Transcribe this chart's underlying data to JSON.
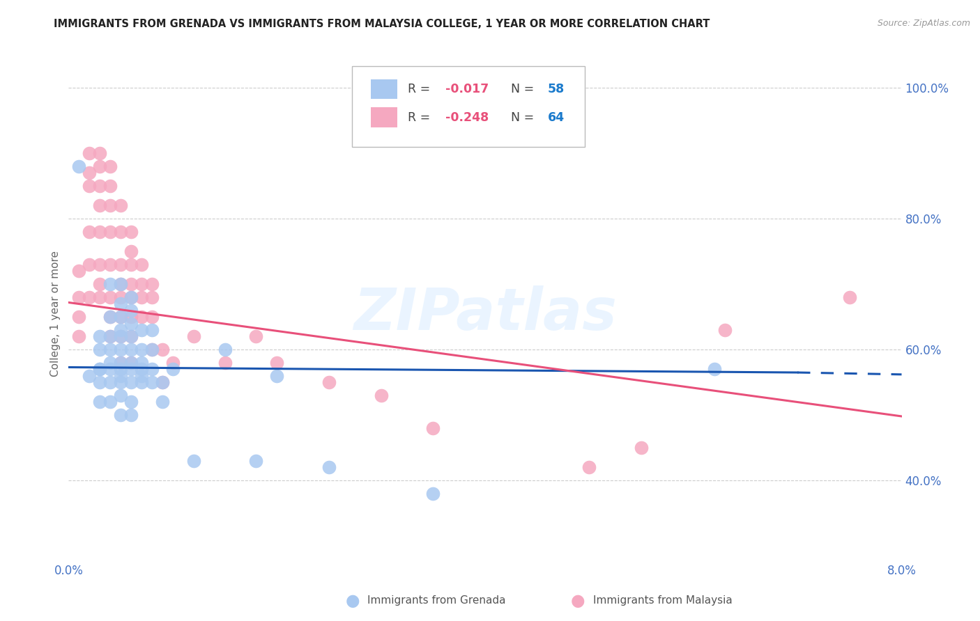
{
  "title": "IMMIGRANTS FROM GRENADA VS IMMIGRANTS FROM MALAYSIA COLLEGE, 1 YEAR OR MORE CORRELATION CHART",
  "source": "Source: ZipAtlas.com",
  "ylabel": "College, 1 year or more",
  "xlim": [
    0.0,
    0.08
  ],
  "ylim": [
    0.28,
    1.03
  ],
  "yticks_right": [
    1.0,
    0.8,
    0.6,
    0.4
  ],
  "yticklabels_right": [
    "100.0%",
    "80.0%",
    "60.0%",
    "40.0%"
  ],
  "series1_label": "Immigrants from Grenada",
  "series1_R": "-0.017",
  "series1_N": "58",
  "series1_color": "#a8c8f0",
  "series1_line_color": "#1a56b0",
  "series2_label": "Immigrants from Malaysia",
  "series2_R": "-0.248",
  "series2_N": "64",
  "series2_color": "#f5a8c0",
  "series2_line_color": "#e8507a",
  "watermark": "ZIPatlas",
  "background_color": "#ffffff",
  "grid_color": "#cccccc",
  "series1_x": [
    0.001,
    0.002,
    0.003,
    0.003,
    0.003,
    0.003,
    0.003,
    0.003,
    0.004,
    0.004,
    0.004,
    0.004,
    0.004,
    0.004,
    0.004,
    0.004,
    0.005,
    0.005,
    0.005,
    0.005,
    0.005,
    0.005,
    0.005,
    0.005,
    0.005,
    0.005,
    0.005,
    0.005,
    0.006,
    0.006,
    0.006,
    0.006,
    0.006,
    0.006,
    0.006,
    0.006,
    0.006,
    0.006,
    0.007,
    0.007,
    0.007,
    0.007,
    0.007,
    0.007,
    0.008,
    0.008,
    0.008,
    0.008,
    0.009,
    0.009,
    0.01,
    0.012,
    0.015,
    0.018,
    0.02,
    0.025,
    0.035,
    0.062
  ],
  "series1_y": [
    0.88,
    0.56,
    0.62,
    0.6,
    0.57,
    0.55,
    0.52,
    0.57,
    0.7,
    0.65,
    0.62,
    0.6,
    0.58,
    0.57,
    0.55,
    0.52,
    0.7,
    0.67,
    0.65,
    0.63,
    0.62,
    0.6,
    0.58,
    0.57,
    0.56,
    0.55,
    0.53,
    0.5,
    0.68,
    0.66,
    0.64,
    0.62,
    0.6,
    0.58,
    0.57,
    0.55,
    0.52,
    0.5,
    0.63,
    0.6,
    0.58,
    0.57,
    0.56,
    0.55,
    0.63,
    0.6,
    0.57,
    0.55,
    0.55,
    0.52,
    0.57,
    0.43,
    0.6,
    0.43,
    0.56,
    0.42,
    0.38,
    0.57
  ],
  "series2_x": [
    0.001,
    0.001,
    0.001,
    0.001,
    0.002,
    0.002,
    0.002,
    0.002,
    0.002,
    0.002,
    0.003,
    0.003,
    0.003,
    0.003,
    0.003,
    0.003,
    0.003,
    0.003,
    0.004,
    0.004,
    0.004,
    0.004,
    0.004,
    0.004,
    0.004,
    0.004,
    0.005,
    0.005,
    0.005,
    0.005,
    0.005,
    0.005,
    0.005,
    0.005,
    0.006,
    0.006,
    0.006,
    0.006,
    0.006,
    0.006,
    0.006,
    0.006,
    0.007,
    0.007,
    0.007,
    0.007,
    0.008,
    0.008,
    0.008,
    0.008,
    0.009,
    0.009,
    0.01,
    0.012,
    0.015,
    0.018,
    0.02,
    0.025,
    0.03,
    0.035,
    0.05,
    0.055,
    0.063,
    0.075
  ],
  "series2_y": [
    0.72,
    0.68,
    0.65,
    0.62,
    0.9,
    0.87,
    0.85,
    0.78,
    0.73,
    0.68,
    0.9,
    0.88,
    0.85,
    0.82,
    0.78,
    0.73,
    0.7,
    0.68,
    0.88,
    0.85,
    0.82,
    0.78,
    0.73,
    0.68,
    0.65,
    0.62,
    0.82,
    0.78,
    0.73,
    0.7,
    0.68,
    0.65,
    0.62,
    0.58,
    0.78,
    0.75,
    0.73,
    0.7,
    0.68,
    0.65,
    0.62,
    0.58,
    0.73,
    0.7,
    0.68,
    0.65,
    0.7,
    0.68,
    0.65,
    0.6,
    0.6,
    0.55,
    0.58,
    0.62,
    0.58,
    0.62,
    0.58,
    0.55,
    0.53,
    0.48,
    0.42,
    0.45,
    0.63,
    0.68
  ],
  "line1_x0": 0.0,
  "line1_y0": 0.573,
  "line1_x1": 0.07,
  "line1_y1": 0.565,
  "line1_xdash0": 0.07,
  "line1_ydash0": 0.565,
  "line1_xdash1": 0.08,
  "line1_ydash1": 0.562,
  "line2_x0": 0.0,
  "line2_y0": 0.672,
  "line2_x1": 0.08,
  "line2_y1": 0.498
}
